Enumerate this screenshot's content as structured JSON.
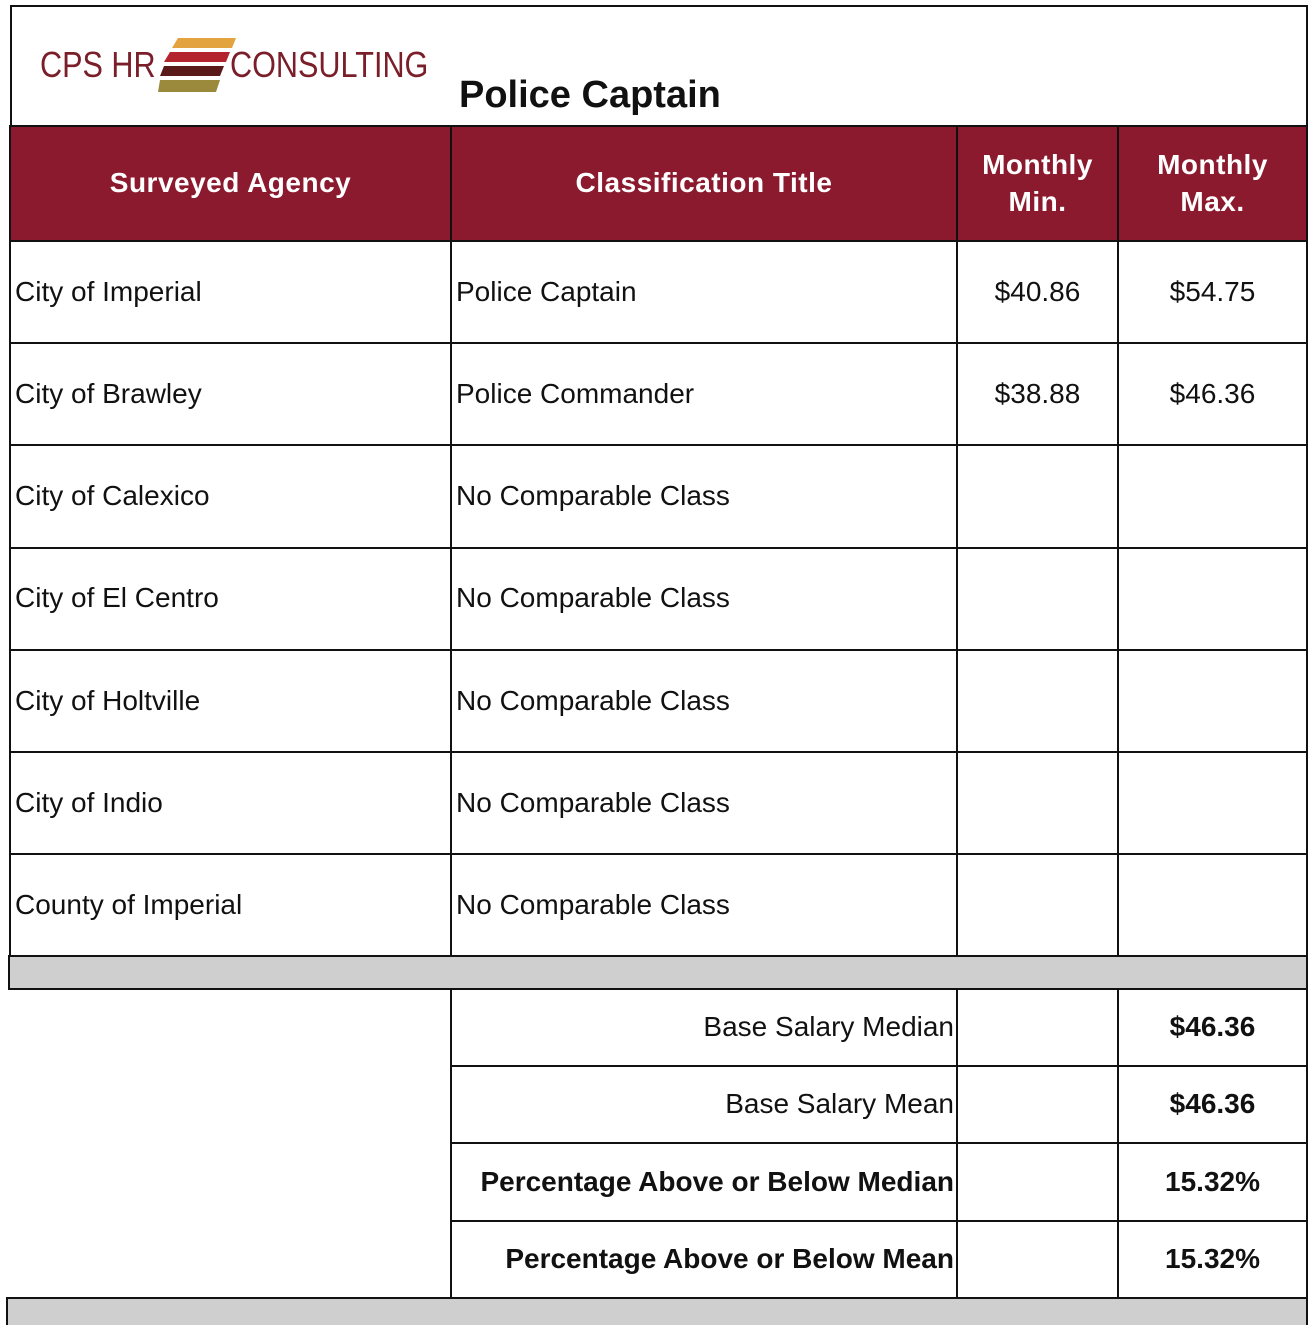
{
  "header": {
    "logo_left": "CPS HR",
    "logo_right": "CONSULTING",
    "title": "Police Captain"
  },
  "table": {
    "columns": [
      "Surveyed Agency",
      "Classification Title",
      "Monthly Min.",
      "Monthly Max."
    ],
    "rows": [
      [
        "City of Imperial",
        "Police Captain",
        "$40.86",
        "$54.75"
      ],
      [
        "City of Brawley",
        "Police Commander",
        "$38.88",
        "$46.36"
      ],
      [
        "City of Calexico",
        "No Comparable Class"
      ],
      [
        "City of El Centro",
        "No Comparable Class"
      ],
      [
        "City of Holtville",
        "No Comparable Class"
      ],
      [
        "City of Indio",
        "No Comparable Class"
      ],
      [
        "County of Imperial",
        "No Comparable Class"
      ]
    ],
    "summary": [
      {
        "label": "Base Salary Median",
        "value": "$46.36"
      },
      {
        "label": "Base Salary Mean",
        "value": "$46.36"
      },
      {
        "label": "Percentage Above or Below Median",
        "value": "15.32%"
      },
      {
        "label": "Percentage Above or Below Mean",
        "value": "15.32%"
      }
    ]
  }
}
